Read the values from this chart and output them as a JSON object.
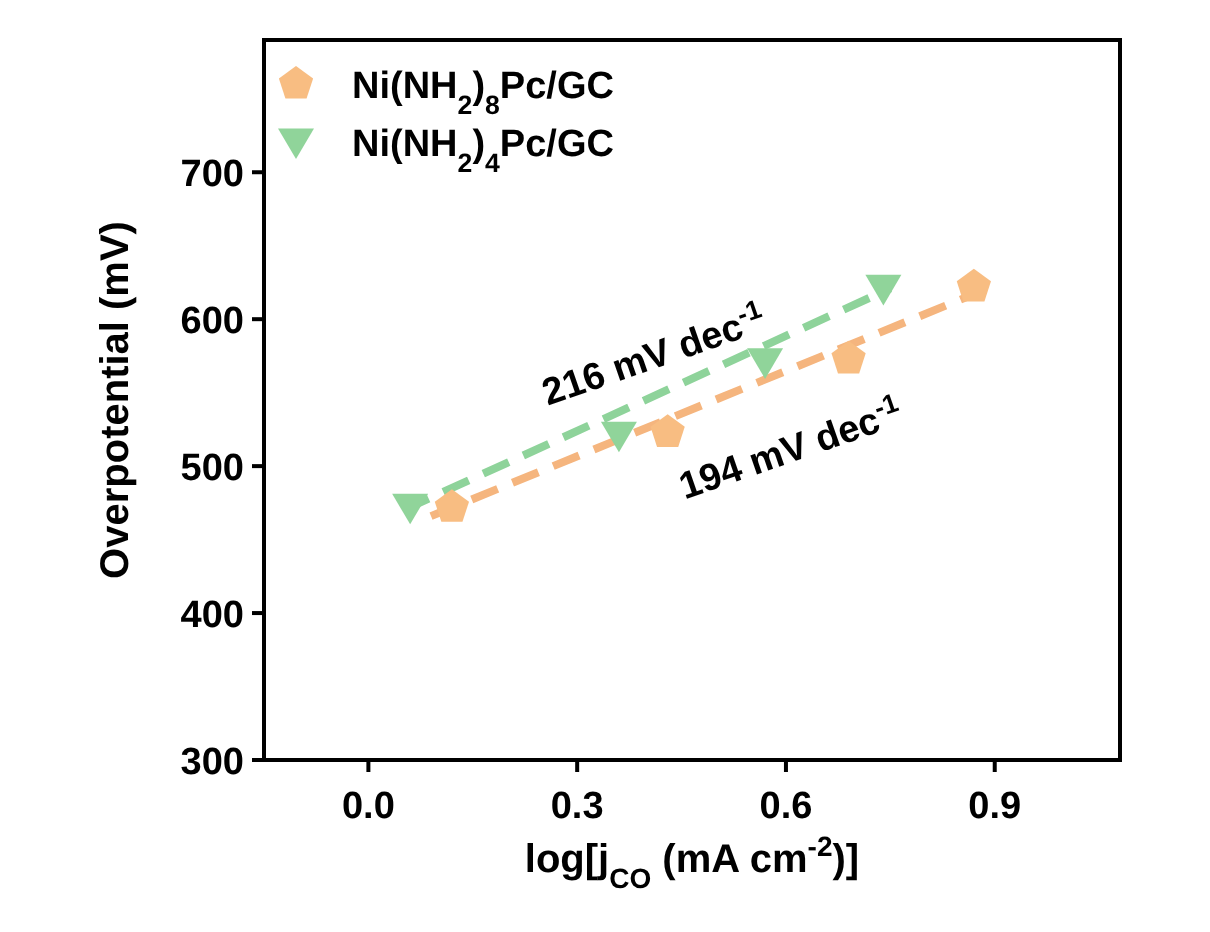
{
  "chart_data": {
    "type": "scatter",
    "xlabel": "log[j$_{CO}$ (mA cm$^{-2}$)]",
    "ylabel": "Overpotential (mV)",
    "xlim": [
      -0.15,
      1.08
    ],
    "ylim": [
      300,
      790
    ],
    "xticks": [
      {
        "value": 0,
        "label": "0.0"
      },
      {
        "value": 0.3,
        "label": "0.3"
      },
      {
        "value": 0.6,
        "label": "0.6"
      },
      {
        "value": 0.9,
        "label": "0.9"
      }
    ],
    "yticks": [
      300,
      400,
      500,
      600,
      700
    ],
    "grid": false,
    "legend": "top left",
    "series": [
      {
        "name": "Ni(NH$_{2}$)$_{8}$Pc/GC",
        "color": "#f8bd82",
        "x": [
          0.12,
          0.43,
          0.69,
          0.87
        ],
        "values": [
          472,
          523,
          573,
          622
        ]
      },
      {
        "name": "Ni(NH$_{2}$)$_{4}$Pc/GC",
        "color": "#90d49a",
        "marker": "triangle",
        "x": [
          0.06,
          0.36,
          0.57,
          0.74
        ],
        "values": [
          472,
          521,
          571,
          621
        ]
      },
      {
        "type": "line",
        "color": "#f5b57e",
        "line_style": "dashed",
        "marker": "none",
        "x": [
          0.09,
          0.88
        ],
        "values": [
          466,
          619
        ]
      },
      {
        "type": "line",
        "color": "#8ed39a",
        "line_style": "dashed",
        "marker": "none",
        "x": [
          0.05,
          0.75
        ],
        "values": [
          470,
          621
        ]
      }
    ],
    "annotations": [
      "216 mV dec$^{-1}$",
      "194 mV dec$^{-1}$"
    ]
  }
}
